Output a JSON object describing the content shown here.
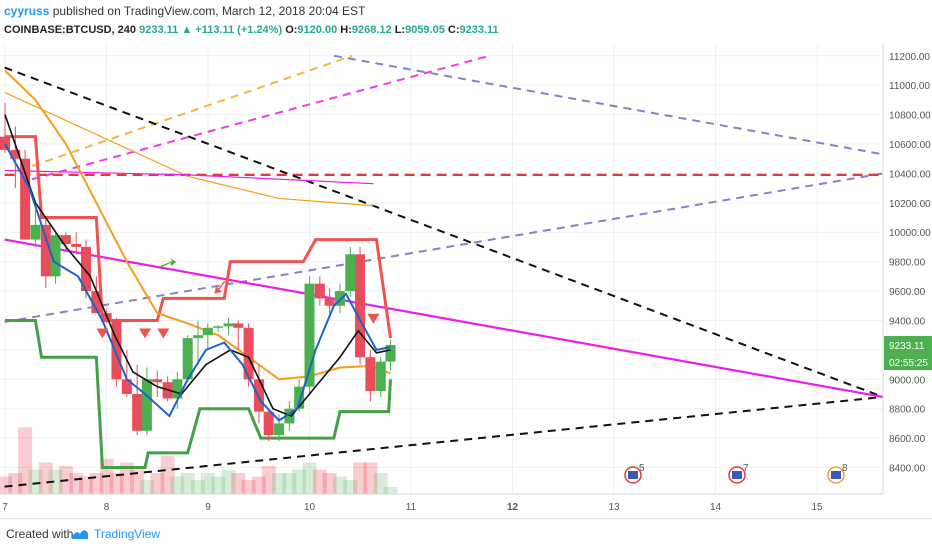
{
  "header": {
    "user": "cyyruss",
    "published": "published on TradingView.com, March 12, 2018 20:04 EST",
    "symbol": "COINBASE:BTCUSD, 240",
    "last": "9233.11",
    "change": "+113.11 (+1.24%)",
    "o_label": "O:",
    "o_value": "9120.00",
    "h_label": "H:",
    "h_value": "9268.12",
    "l_label": "L:",
    "l_value": "9059.05",
    "c_label": "C:",
    "c_value": "9233.11"
  },
  "footer": {
    "created": "Created with",
    "brand": "TradingView"
  },
  "price_tag": "9233.11",
  "countdown_tag": "02:55:25",
  "colors": {
    "up": "#4caf50",
    "down": "#e84d5b",
    "magenta": "#e91ee9",
    "orange": "#f59e1b",
    "blue": "#1e63c8",
    "black": "#111111",
    "green_band": "#43a047",
    "red_band": "#ef5350",
    "red_dash": "#e53935",
    "purple_dash": "#8c7fc4",
    "gold_dash": "#f0b840",
    "pink_dash": "#f03be8"
  },
  "event_icons": [
    {
      "label": "5",
      "icon": "us-flag-event-icon"
    },
    {
      "label": "7",
      "icon": "us-flag-event-icon"
    },
    {
      "label": "8",
      "icon": "us-flag-event-icon"
    }
  ],
  "chart_data": {
    "type": "candlestick",
    "title": "",
    "x_axis": {
      "ticks": [
        "7",
        "8",
        "9",
        "10",
        "11",
        "12",
        "13",
        "14",
        "15"
      ],
      "bold_tick": "12"
    },
    "y_axis": {
      "ticks": [
        8400,
        8600,
        8800,
        9000,
        9200,
        9400,
        9600,
        9800,
        10000,
        10200,
        10400,
        10600,
        10800,
        11000,
        11200
      ],
      "ylim": [
        8220,
        11280
      ]
    },
    "grid": true,
    "candles": [
      {
        "x": 7.0,
        "o": 10650,
        "h": 10880,
        "l": 10540,
        "c": 10560
      },
      {
        "x": 7.17,
        "o": 10560,
        "h": 10720,
        "l": 10300,
        "c": 10500
      },
      {
        "x": 7.33,
        "o": 10500,
        "h": 10560,
        "l": 9950,
        "c": 9950
      },
      {
        "x": 7.5,
        "o": 9950,
        "h": 10150,
        "l": 9900,
        "c": 10050
      },
      {
        "x": 7.67,
        "o": 10050,
        "h": 10100,
        "l": 9620,
        "c": 9700
      },
      {
        "x": 7.83,
        "o": 9700,
        "h": 10000,
        "l": 9650,
        "c": 9980
      },
      {
        "x": 8.0,
        "o": 9980,
        "h": 10000,
        "l": 9880,
        "c": 9920
      },
      {
        "x": 8.17,
        "o": 9920,
        "h": 10000,
        "l": 9850,
        "c": 9900
      },
      {
        "x": 8.33,
        "o": 9900,
        "h": 9950,
        "l": 9550,
        "c": 9600
      },
      {
        "x": 8.5,
        "o": 9600,
        "h": 9700,
        "l": 9450,
        "c": 9450
      },
      {
        "x": 8.67,
        "o": 9450,
        "h": 9480,
        "l": 9380,
        "c": 9400
      },
      {
        "x": 8.83,
        "o": 9400,
        "h": 9420,
        "l": 8950,
        "c": 9000
      },
      {
        "x": 9.0,
        "o": 9000,
        "h": 9200,
        "l": 8880,
        "c": 8900
      },
      {
        "x": 9.17,
        "o": 8900,
        "h": 9100,
        "l": 8620,
        "c": 8650
      },
      {
        "x": 9.33,
        "o": 8650,
        "h": 9080,
        "l": 8620,
        "c": 9000
      },
      {
        "x": 9.5,
        "o": 9000,
        "h": 9060,
        "l": 8880,
        "c": 8980
      },
      {
        "x": 9.67,
        "o": 8980,
        "h": 9020,
        "l": 8850,
        "c": 8870
      },
      {
        "x": 9.83,
        "o": 8870,
        "h": 9050,
        "l": 8800,
        "c": 9000
      },
      {
        "x": 10.0,
        "o": 9000,
        "h": 9300,
        "l": 8980,
        "c": 9280
      },
      {
        "x": 10.17,
        "o": 9280,
        "h": 9400,
        "l": 9100,
        "c": 9300
      },
      {
        "x": 10.33,
        "o": 9300,
        "h": 9380,
        "l": 9200,
        "c": 9350
      },
      {
        "x": 10.5,
        "o": 9350,
        "h": 9370,
        "l": 9320,
        "c": 9360
      },
      {
        "x": 10.67,
        "o": 9360,
        "h": 9420,
        "l": 9300,
        "c": 9380
      },
      {
        "x": 10.83,
        "o": 9380,
        "h": 9400,
        "l": 9200,
        "c": 9350
      },
      {
        "x": 11.0,
        "o": 9350,
        "h": 9380,
        "l": 8950,
        "c": 9000
      },
      {
        "x": 11.17,
        "o": 9000,
        "h": 9100,
        "l": 8700,
        "c": 8780
      },
      {
        "x": 11.33,
        "o": 8780,
        "h": 8800,
        "l": 8580,
        "c": 8620
      },
      {
        "x": 11.5,
        "o": 8620,
        "h": 8760,
        "l": 8580,
        "c": 8700
      },
      {
        "x": 11.67,
        "o": 8700,
        "h": 8850,
        "l": 8650,
        "c": 8800
      },
      {
        "x": 11.83,
        "o": 8800,
        "h": 9000,
        "l": 8780,
        "c": 8950
      },
      {
        "x": 12.0,
        "o": 8950,
        "h": 9700,
        "l": 8900,
        "c": 9650
      },
      {
        "x": 12.17,
        "o": 9650,
        "h": 9700,
        "l": 9500,
        "c": 9550
      },
      {
        "x": 12.33,
        "o": 9550,
        "h": 9620,
        "l": 9450,
        "c": 9500
      },
      {
        "x": 12.5,
        "o": 9500,
        "h": 9650,
        "l": 9450,
        "c": 9600
      },
      {
        "x": 12.67,
        "o": 9600,
        "h": 9900,
        "l": 9560,
        "c": 9850
      },
      {
        "x": 12.83,
        "o": 9850,
        "h": 9900,
        "l": 9100,
        "c": 9150
      },
      {
        "x": 13.0,
        "o": 9150,
        "h": 9200,
        "l": 8850,
        "c": 8920
      },
      {
        "x": 13.17,
        "o": 8920,
        "h": 9150,
        "l": 8880,
        "c": 9120
      },
      {
        "x": 13.33,
        "o": 9120,
        "h": 9268,
        "l": 9059,
        "c": 9233
      }
    ],
    "note_x_mapping": "x is day-of-month position on the time axis; tick 12 sits at 12.0 but the axis label row places 12 under the candle cluster shown",
    "overlays": {
      "blue_line": [
        [
          7.0,
          10600
        ],
        [
          7.4,
          10300
        ],
        [
          7.8,
          9800
        ],
        [
          8.2,
          9700
        ],
        [
          8.6,
          9400
        ],
        [
          9.0,
          9000
        ],
        [
          9.3,
          8900
        ],
        [
          9.7,
          8750
        ],
        [
          10.0,
          9000
        ],
        [
          10.3,
          9200
        ],
        [
          10.6,
          9250
        ],
        [
          10.9,
          9100
        ],
        [
          11.2,
          8850
        ],
        [
          11.5,
          8720
        ],
        [
          11.8,
          8800
        ],
        [
          12.1,
          9200
        ],
        [
          12.4,
          9500
        ],
        [
          12.6,
          9580
        ],
        [
          12.9,
          9350
        ],
        [
          13.1,
          9200
        ],
        [
          13.33,
          9220
        ]
      ],
      "black_line": [
        [
          7.0,
          10800
        ],
        [
          7.5,
          10200
        ],
        [
          8.0,
          9900
        ],
        [
          8.4,
          9700
        ],
        [
          8.8,
          9300
        ],
        [
          9.1,
          9050
        ],
        [
          9.5,
          8950
        ],
        [
          9.9,
          8900
        ],
        [
          10.3,
          9100
        ],
        [
          10.7,
          9200
        ],
        [
          11.0,
          9150
        ],
        [
          11.4,
          8800
        ],
        [
          11.7,
          8750
        ],
        [
          12.1,
          8950
        ],
        [
          12.5,
          9150
        ],
        [
          12.8,
          9330
        ],
        [
          13.1,
          9180
        ],
        [
          13.33,
          9200
        ]
      ],
      "orange_line": [
        [
          7.0,
          11100
        ],
        [
          7.5,
          10900
        ],
        [
          8.0,
          10600
        ],
        [
          8.5,
          10200
        ],
        [
          9.0,
          9800
        ],
        [
          9.5,
          9450
        ],
        [
          10.0,
          9380
        ],
        [
          10.5,
          9300
        ],
        [
          11.0,
          9150
        ],
        [
          11.5,
          9000
        ],
        [
          12.0,
          9020
        ],
        [
          12.5,
          9080
        ],
        [
          13.0,
          9090
        ],
        [
          13.33,
          9040
        ]
      ],
      "green_band": [
        [
          7.0,
          9400
        ],
        [
          7.5,
          9400
        ],
        [
          7.6,
          9150
        ],
        [
          8.5,
          9150
        ],
        [
          8.6,
          8400
        ],
        [
          9.3,
          8400
        ],
        [
          9.35,
          8500
        ],
        [
          10.0,
          8500
        ],
        [
          10.2,
          8800
        ],
        [
          11.0,
          8800
        ],
        [
          11.2,
          8600
        ],
        [
          12.4,
          8600
        ],
        [
          12.5,
          8780
        ],
        [
          13.3,
          8780
        ],
        [
          13.33,
          9000
        ]
      ],
      "red_band": [
        [
          7.0,
          10650
        ],
        [
          7.5,
          10650
        ],
        [
          7.6,
          10100
        ],
        [
          8.5,
          10100
        ],
        [
          8.6,
          9400
        ],
        [
          9.5,
          9400
        ],
        [
          9.6,
          9550
        ],
        [
          10.6,
          9550
        ],
        [
          10.7,
          9800
        ],
        [
          11.9,
          9800
        ],
        [
          12.1,
          9950
        ],
        [
          13.1,
          9950
        ],
        [
          13.33,
          9280
        ]
      ],
      "magenta_line": [
        [
          7.0,
          9950
        ],
        [
          16.6,
          8880
        ]
      ],
      "thin_orange_curve": [
        [
          7.0,
          10950
        ],
        [
          10.0,
          10380
        ],
        [
          11.5,
          10230
        ],
        [
          13.05,
          10180
        ]
      ],
      "thin_magenta_curve": [
        [
          7.0,
          10420
        ],
        [
          10.0,
          10390
        ],
        [
          13.05,
          10330
        ]
      ],
      "red_dashed_line": [
        [
          7.0,
          10390
        ],
        [
          16.6,
          10390
        ]
      ],
      "black_dashed_long": [
        [
          7.0,
          11120
        ],
        [
          16.6,
          8880
        ]
      ],
      "black_dashed_lower": [
        [
          7.0,
          8270
        ],
        [
          16.6,
          8880
        ]
      ],
      "purple_dashed_rising": [
        [
          7.0,
          9390
        ],
        [
          16.6,
          10400
        ]
      ],
      "purple_dashed_falling": [
        [
          10.6,
          11200
        ],
        [
          16.6,
          10530
        ]
      ],
      "gold_dashed": [
        [
          7.3,
          10450
        ],
        [
          10.8,
          11200
        ]
      ],
      "pink_dashed": [
        [
          7.3,
          10360
        ],
        [
          12.3,
          11200
        ]
      ]
    },
    "volume": [
      0.25,
      0.3,
      0.95,
      0.35,
      0.45,
      0.35,
      0.4,
      0.3,
      0.25,
      0.3,
      0.5,
      0.3,
      0.45,
      0.35,
      0.2,
      0.3,
      0.55,
      0.25,
      0.3,
      0.2,
      0.3,
      0.25,
      0.35,
      0.3,
      0.2,
      0.25,
      0.4,
      0.3,
      0.3,
      0.35,
      0.45,
      0.35,
      0.3,
      0.25,
      0.2,
      0.45,
      0.45,
      0.3,
      0.1
    ]
  }
}
